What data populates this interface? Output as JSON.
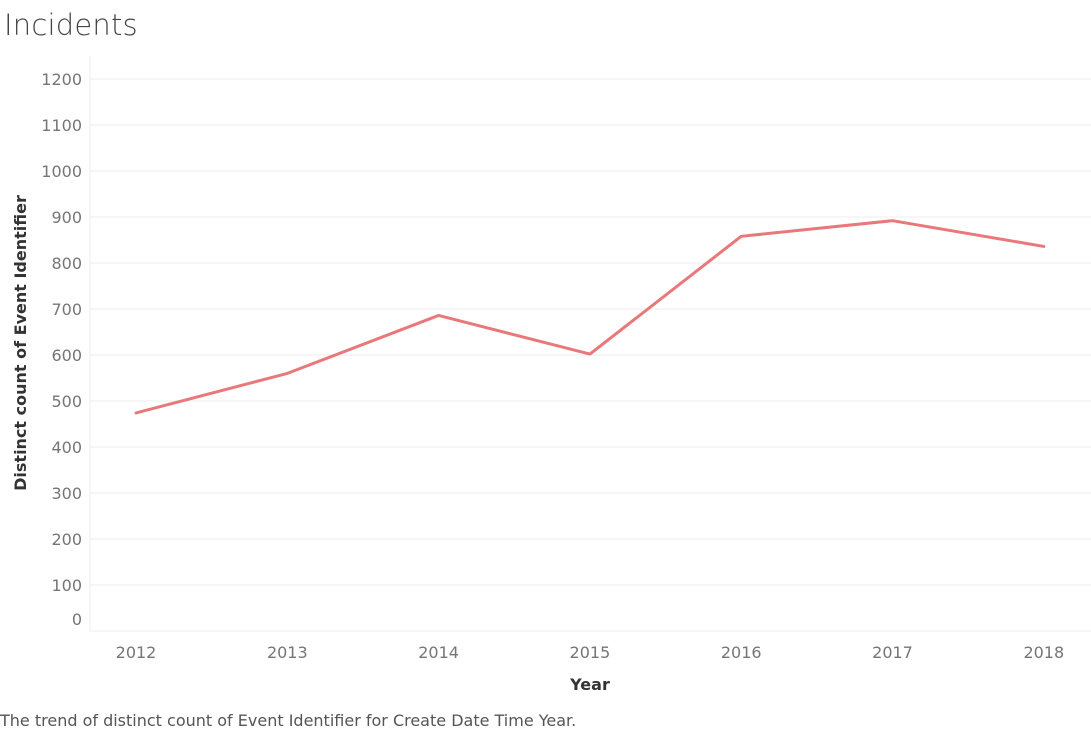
{
  "title": "Incidents",
  "caption": "The trend of distinct count of Event Identifier for Create Date Time Year.",
  "colors": {
    "line": "#e9787a",
    "grid": "#ececec",
    "tick_text": "#757575"
  },
  "chart_data": {
    "type": "line",
    "title": "Incidents",
    "xlabel": "Year",
    "ylabel": "Distinct count of Event Identifier",
    "categories": [
      "2012",
      "2013",
      "2014",
      "2015",
      "2016",
      "2017",
      "2018"
    ],
    "series": [
      {
        "values": [
          474,
          560,
          686,
          602,
          858,
          892,
          836
        ]
      }
    ],
    "ylim": [
      0,
      1200
    ],
    "yticks": [
      0,
      100,
      200,
      300,
      400,
      500,
      600,
      700,
      800,
      900,
      1000,
      1100,
      1200
    ],
    "grid": true,
    "legend": "none"
  }
}
